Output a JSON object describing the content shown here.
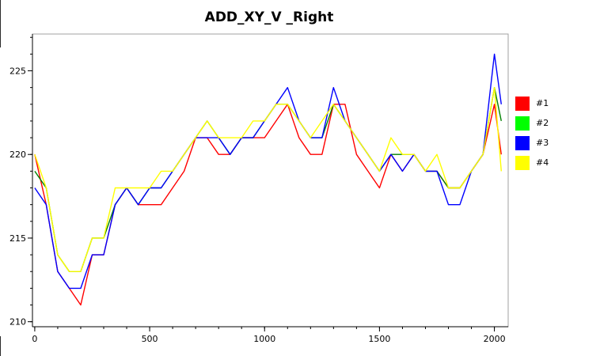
{
  "chart_data": {
    "type": "line",
    "title": "ADD_XY_V _Right",
    "xlabel": "",
    "ylabel": "",
    "xlim": [
      -10,
      2060
    ],
    "ylim": [
      209.7,
      227.2
    ],
    "xticks": [
      0,
      500,
      1000,
      1500,
      2000
    ],
    "yticks": [
      210,
      215,
      220,
      225
    ],
    "grid": false,
    "legend_position": "right",
    "series": [
      {
        "name": "#1",
        "color": "#ff0000",
        "x": [
          0,
          50,
          100,
          150,
          200,
          250,
          300,
          350,
          400,
          450,
          500,
          550,
          600,
          650,
          700,
          750,
          800,
          850,
          900,
          950,
          1000,
          1050,
          1100,
          1150,
          1200,
          1250,
          1300,
          1350,
          1400,
          1450,
          1500,
          1550,
          1600,
          1650,
          1700,
          1750,
          1800,
          1850,
          1900,
          1950,
          2000,
          2030
        ],
        "y": [
          220,
          217,
          213,
          212,
          211,
          214,
          214,
          217,
          218,
          217,
          217,
          217,
          218,
          219,
          221,
          221,
          220,
          220,
          221,
          221,
          221,
          222,
          223,
          221,
          220,
          220,
          223,
          223,
          220,
          219,
          218,
          220,
          219,
          220,
          219,
          219,
          218,
          218,
          219,
          220,
          223,
          220
        ]
      },
      {
        "name": "#2",
        "color": "#008000",
        "x": [
          0,
          50,
          100,
          150,
          200,
          250,
          300,
          350,
          400,
          450,
          500,
          550,
          600,
          650,
          700,
          750,
          800,
          850,
          900,
          950,
          1000,
          1050,
          1100,
          1150,
          1200,
          1250,
          1300,
          1350,
          1400,
          1450,
          1500,
          1550,
          1600,
          1650,
          1700,
          1750,
          1800,
          1850,
          1900,
          1950,
          2000,
          2030
        ],
        "y": [
          219,
          218,
          214,
          213,
          213,
          215,
          215,
          217,
          218,
          217,
          218,
          218,
          219,
          220,
          221,
          222,
          221,
          220,
          221,
          221,
          222,
          223,
          223,
          222,
          221,
          221,
          223,
          222,
          221,
          220,
          219,
          220,
          220,
          220,
          219,
          219,
          218,
          218,
          219,
          220,
          224,
          222
        ]
      },
      {
        "name": "#3",
        "color": "#0000ff",
        "x": [
          0,
          50,
          100,
          150,
          200,
          250,
          300,
          350,
          400,
          450,
          500,
          550,
          600,
          650,
          700,
          750,
          800,
          850,
          900,
          950,
          1000,
          1050,
          1100,
          1150,
          1200,
          1250,
          1300,
          1350,
          1400,
          1450,
          1500,
          1550,
          1600,
          1650,
          1700,
          1750,
          1800,
          1850,
          1900,
          1950,
          2000,
          2030
        ],
        "y": [
          218,
          217,
          213,
          212,
          212,
          214,
          214,
          217,
          218,
          217,
          218,
          218,
          219,
          220,
          221,
          221,
          221,
          220,
          221,
          221,
          222,
          223,
          224,
          222,
          221,
          221,
          224,
          222,
          221,
          220,
          219,
          220,
          219,
          220,
          219,
          219,
          217,
          217,
          219,
          220,
          226,
          223
        ]
      },
      {
        "name": "#4",
        "color": "#ffff00",
        "x": [
          0,
          50,
          100,
          150,
          200,
          250,
          300,
          350,
          400,
          450,
          500,
          550,
          600,
          650,
          700,
          750,
          800,
          850,
          900,
          950,
          1000,
          1050,
          1100,
          1150,
          1200,
          1250,
          1300,
          1350,
          1400,
          1450,
          1500,
          1550,
          1600,
          1650,
          1700,
          1750,
          1800,
          1850,
          1900,
          1950,
          2000,
          2030
        ],
        "y": [
          220,
          218,
          214,
          213,
          213,
          215,
          215,
          218,
          218,
          218,
          218,
          219,
          219,
          220,
          221,
          222,
          221,
          221,
          221,
          222,
          222,
          223,
          223,
          222,
          221,
          222,
          223,
          222,
          221,
          220,
          219,
          221,
          220,
          220,
          219,
          220,
          218,
          218,
          219,
          220,
          224,
          219
        ]
      }
    ]
  }
}
